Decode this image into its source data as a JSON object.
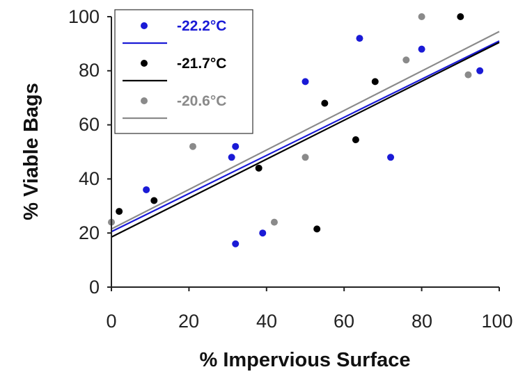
{
  "chart_data": {
    "type": "scatter",
    "title": "",
    "xlabel": "% Impervious Surface",
    "ylabel": "% Viable Bags",
    "xlim": [
      0,
      100
    ],
    "ylim": [
      0,
      100
    ],
    "xticks": [
      "0",
      "20",
      "40",
      "60",
      "80",
      "100"
    ],
    "yticks": [
      "0",
      "20",
      "40",
      "60",
      "80",
      "100"
    ],
    "grid": false,
    "legend_position": "top-left",
    "series": [
      {
        "name": "-22.2°C",
        "color": "#1a1ad6",
        "points": [
          [
            9,
            36
          ],
          [
            31,
            48
          ],
          [
            32,
            52
          ],
          [
            32,
            16
          ],
          [
            39,
            20
          ],
          [
            50,
            76
          ],
          [
            64,
            92
          ],
          [
            72,
            48
          ],
          [
            80,
            88
          ],
          [
            95,
            80
          ]
        ],
        "trendline": [
          [
            0,
            20.5
          ],
          [
            100,
            91
          ]
        ]
      },
      {
        "name": "-21.7°C",
        "color": "#000000",
        "points": [
          [
            2,
            28
          ],
          [
            11,
            32
          ],
          [
            38,
            44
          ],
          [
            53,
            21.5
          ],
          [
            55,
            68
          ],
          [
            63,
            54.5
          ],
          [
            68,
            76
          ],
          [
            90,
            100
          ]
        ],
        "trendline": [
          [
            0,
            18.5
          ],
          [
            100,
            90.5
          ]
        ]
      },
      {
        "name": "-20.6°C",
        "color": "#8a8a8a",
        "points": [
          [
            0,
            24
          ],
          [
            21,
            52
          ],
          [
            42,
            24
          ],
          [
            50,
            48
          ],
          [
            76,
            84
          ],
          [
            80,
            100
          ],
          [
            92,
            78.5
          ]
        ],
        "trendline": [
          [
            0,
            21.5
          ],
          [
            100,
            94.5
          ]
        ]
      }
    ]
  }
}
